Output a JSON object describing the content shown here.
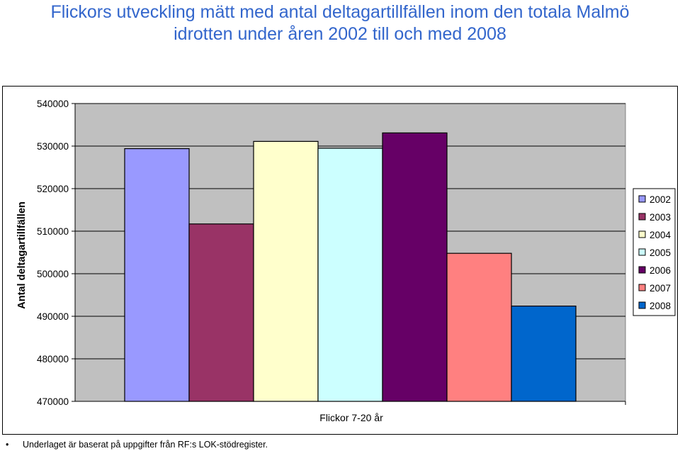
{
  "header": {
    "title_line1": "Flickors utveckling mätt med antal deltagartillfällen inom den totala Malmö",
    "title_line2": "idrotten under åren 2002 till och med 2008"
  },
  "chart_data": {
    "type": "bar",
    "categories": [
      "Flickor 7-20 år"
    ],
    "xlabel": "Flickor 7-20 år",
    "ylabel": "Antal deltagartillfällen",
    "ylim": [
      470000,
      540000
    ],
    "yticks": [
      470000,
      480000,
      490000,
      500000,
      510000,
      520000,
      530000,
      540000
    ],
    "grid": true,
    "legend_position": "right",
    "plot_background": "#c0c0c0",
    "series": [
      {
        "name": "2002",
        "values": [
          529400
        ],
        "color": "#9999ff"
      },
      {
        "name": "2003",
        "values": [
          511700
        ],
        "color": "#993366"
      },
      {
        "name": "2004",
        "values": [
          531100
        ],
        "color": "#ffffcc"
      },
      {
        "name": "2005",
        "values": [
          529500
        ],
        "color": "#ccffff"
      },
      {
        "name": "2006",
        "values": [
          533100
        ],
        "color": "#660066"
      },
      {
        "name": "2007",
        "values": [
          504800
        ],
        "color": "#ff8080"
      },
      {
        "name": "2008",
        "values": [
          492400
        ],
        "color": "#0066cc"
      }
    ]
  },
  "footnote": {
    "bullet": "•",
    "text": "Underlaget är baserat på uppgifter från RF:s LOK-stödregister."
  }
}
